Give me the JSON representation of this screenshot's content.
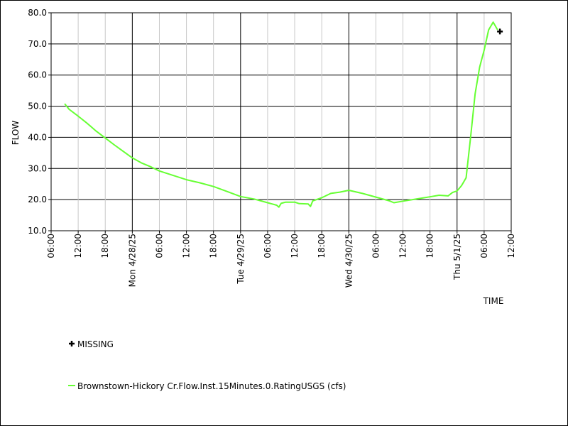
{
  "chart_data": {
    "type": "line",
    "title": "",
    "xlabel": "TIME",
    "ylabel": "FLOW",
    "ylim": [
      10,
      80
    ],
    "xlim": [
      "2025-04-27T06:00",
      "2025-05-01T12:00"
    ],
    "grid": true,
    "y_ticks": [
      "10.0",
      "20.0",
      "30.0",
      "40.0",
      "50.0",
      "60.0",
      "70.0",
      "80.0"
    ],
    "x_ticks": [
      {
        "t": "2025-04-27T06:00",
        "label": "06:00",
        "major": false
      },
      {
        "t": "2025-04-27T12:00",
        "label": "12:00",
        "major": false
      },
      {
        "t": "2025-04-27T18:00",
        "label": "18:00",
        "major": false
      },
      {
        "t": "2025-04-28T00:00",
        "label": "Mon 4/28/25",
        "major": true
      },
      {
        "t": "2025-04-28T06:00",
        "label": "06:00",
        "major": false
      },
      {
        "t": "2025-04-28T12:00",
        "label": "12:00",
        "major": false
      },
      {
        "t": "2025-04-28T18:00",
        "label": "18:00",
        "major": false
      },
      {
        "t": "2025-04-29T00:00",
        "label": "Tue 4/29/25",
        "major": true
      },
      {
        "t": "2025-04-29T06:00",
        "label": "06:00",
        "major": false
      },
      {
        "t": "2025-04-29T12:00",
        "label": "12:00",
        "major": false
      },
      {
        "t": "2025-04-29T18:00",
        "label": "18:00",
        "major": false
      },
      {
        "t": "2025-04-30T00:00",
        "label": "Wed 4/30/25",
        "major": true
      },
      {
        "t": "2025-04-30T06:00",
        "label": "06:00",
        "major": false
      },
      {
        "t": "2025-04-30T12:00",
        "label": "12:00",
        "major": false
      },
      {
        "t": "2025-04-30T18:00",
        "label": "18:00",
        "major": false
      },
      {
        "t": "2025-05-01T00:00",
        "label": "Thu 5/1/25",
        "major": true
      },
      {
        "t": "2025-05-01T06:00",
        "label": "06:00",
        "major": false
      },
      {
        "t": "2025-05-01T12:00",
        "label": "12:00",
        "major": false
      }
    ],
    "series": [
      {
        "name": "Brownstown-Hickory Cr.Flow.Inst.15Minutes.0.RatingUSGS (cfs)",
        "color": "#66ff33",
        "points": [
          [
            "2025-04-27T09:00",
            50.8
          ],
          [
            "2025-04-27T10:00",
            49.0
          ],
          [
            "2025-04-27T12:00",
            46.8
          ],
          [
            "2025-04-27T14:00",
            44.5
          ],
          [
            "2025-04-27T16:00",
            42.0
          ],
          [
            "2025-04-27T18:00",
            39.8
          ],
          [
            "2025-04-27T20:00",
            37.6
          ],
          [
            "2025-04-27T22:00",
            35.5
          ],
          [
            "2025-04-28T00:00",
            33.4
          ],
          [
            "2025-04-28T02:00",
            31.8
          ],
          [
            "2025-04-28T04:00",
            30.6
          ],
          [
            "2025-04-28T06:00",
            29.2
          ],
          [
            "2025-04-28T09:00",
            27.8
          ],
          [
            "2025-04-28T12:00",
            26.4
          ],
          [
            "2025-04-28T15:00",
            25.4
          ],
          [
            "2025-04-28T18:00",
            24.2
          ],
          [
            "2025-04-28T21:00",
            22.6
          ],
          [
            "2025-04-29T00:00",
            21.0
          ],
          [
            "2025-04-29T03:00",
            20.2
          ],
          [
            "2025-04-29T06:00",
            19.0
          ],
          [
            "2025-04-29T08:00",
            18.2
          ],
          [
            "2025-04-29T08:30",
            17.6
          ],
          [
            "2025-04-29T09:00",
            18.8
          ],
          [
            "2025-04-29T10:00",
            19.2
          ],
          [
            "2025-04-29T12:00",
            19.2
          ],
          [
            "2025-04-29T13:00",
            18.7
          ],
          [
            "2025-04-29T15:00",
            18.6
          ],
          [
            "2025-04-29T15:30",
            17.8
          ],
          [
            "2025-04-29T16:00",
            19.6
          ],
          [
            "2025-04-29T18:00",
            20.6
          ],
          [
            "2025-04-29T20:00",
            22.0
          ],
          [
            "2025-04-29T22:00",
            22.4
          ],
          [
            "2025-04-30T00:00",
            23.0
          ],
          [
            "2025-04-30T03:00",
            22.0
          ],
          [
            "2025-04-30T06:00",
            20.8
          ],
          [
            "2025-04-30T09:00",
            19.6
          ],
          [
            "2025-04-30T10:00",
            19.0
          ],
          [
            "2025-04-30T12:00",
            19.5
          ],
          [
            "2025-04-30T15:00",
            20.2
          ],
          [
            "2025-04-30T18:00",
            20.9
          ],
          [
            "2025-04-30T20:00",
            21.4
          ],
          [
            "2025-04-30T22:00",
            21.2
          ],
          [
            "2025-04-30T23:00",
            22.3
          ],
          [
            "2025-05-01T00:00",
            22.8
          ],
          [
            "2025-05-01T01:00",
            24.5
          ],
          [
            "2025-05-01T02:00",
            27.0
          ],
          [
            "2025-05-01T03:00",
            40.0
          ],
          [
            "2025-05-01T04:00",
            54.0
          ],
          [
            "2025-05-01T05:00",
            62.5
          ],
          [
            "2025-05-01T06:00",
            68.0
          ],
          [
            "2025-05-01T07:00",
            74.5
          ],
          [
            "2025-05-01T08:00",
            77.0
          ],
          [
            "2025-05-01T09:00",
            74.5
          ]
        ]
      }
    ],
    "missing_markers": [
      [
        "2025-05-01T09:30",
        74.0
      ]
    ],
    "legend": [
      {
        "name": "MISSING",
        "symbol": "cross",
        "color": "#000000"
      },
      {
        "name": "Brownstown-Hickory Cr.Flow.Inst.15Minutes.0.RatingUSGS (cfs)",
        "symbol": "line",
        "color": "#66ff33"
      }
    ]
  }
}
